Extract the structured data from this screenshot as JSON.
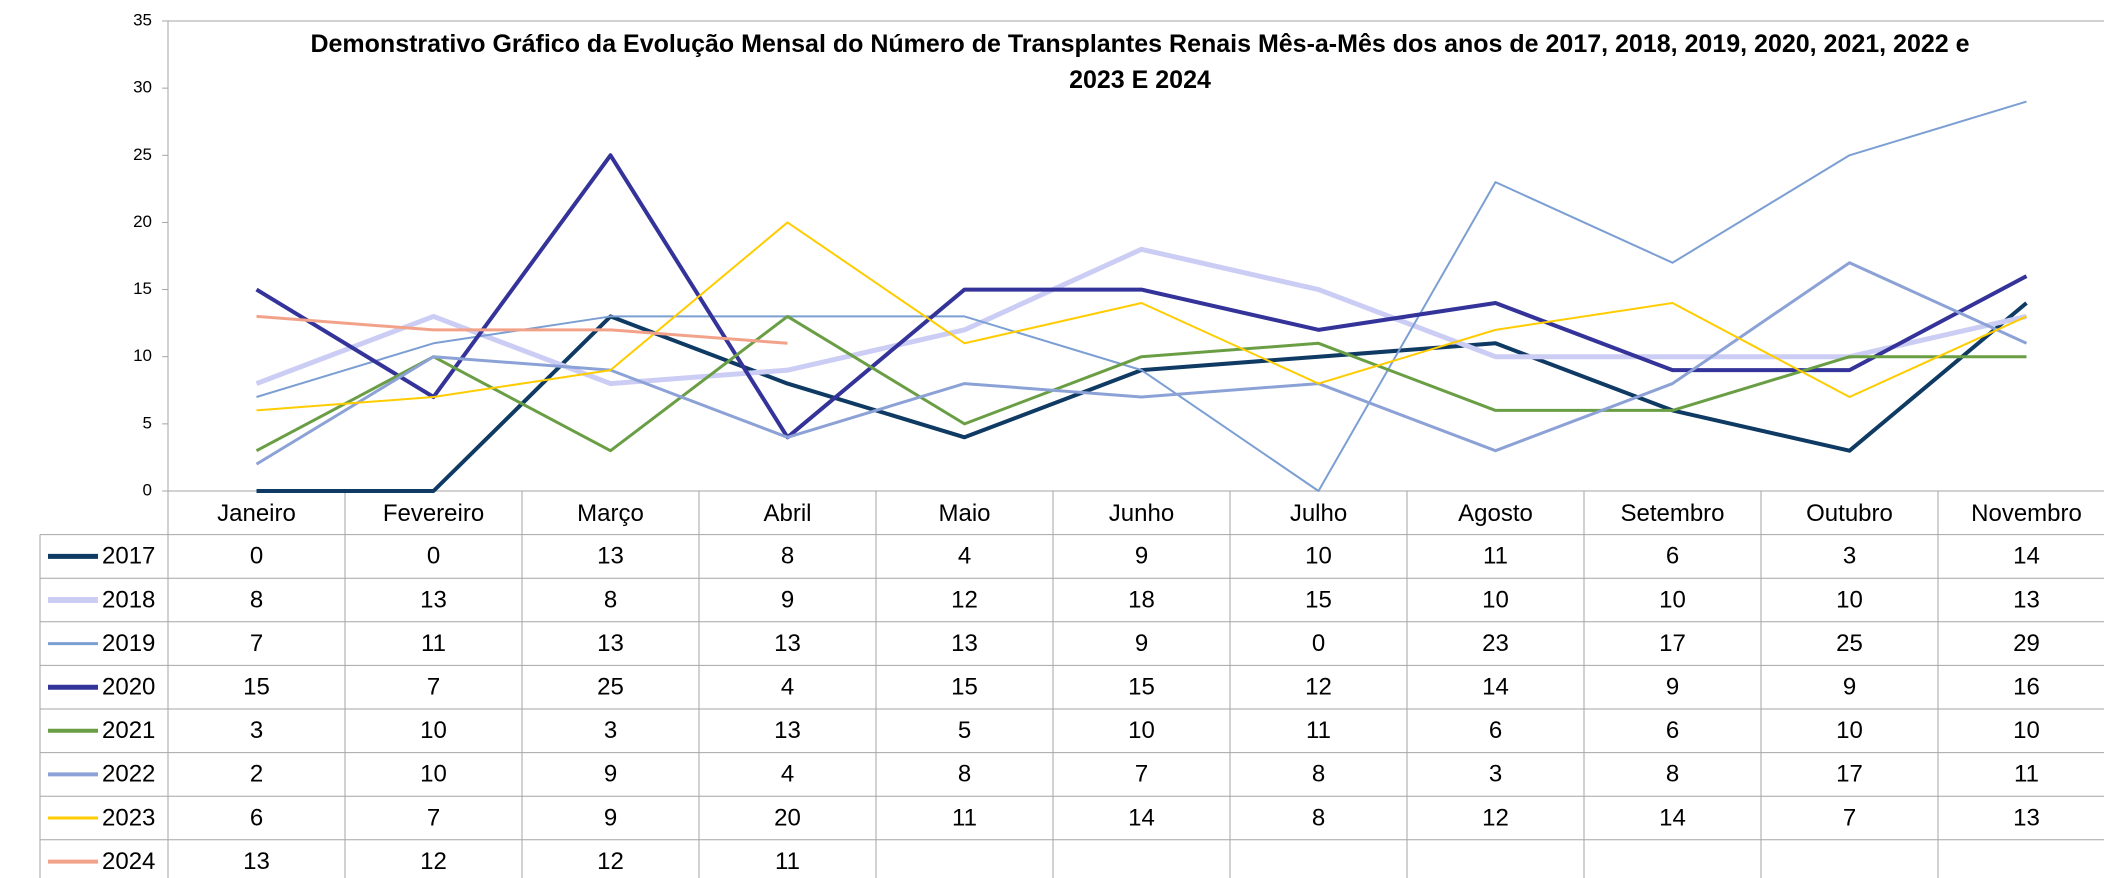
{
  "chart_data": {
    "type": "line",
    "title": "Demonstrativo Gráfico da Evolução Mensal do Número de Transplantes Renais Mês-a-Mês dos anos de  2017, 2018, 2019, 2020, 2021, 2022 e 2023 E 2024",
    "categories": [
      "Janeiro",
      "Fevereiro",
      "Março",
      "Abril",
      "Maio",
      "Junho",
      "Julho",
      "Agosto",
      "Setembro",
      "Outubro",
      "Novembro"
    ],
    "ylim": [
      0,
      35
    ],
    "yticks": [
      0,
      5,
      10,
      15,
      20,
      25,
      30,
      35
    ],
    "series": [
      {
        "name": "2017",
        "color": "#0e3a63",
        "width": 4,
        "values": [
          0,
          0,
          13,
          8,
          4,
          9,
          10,
          11,
          6,
          3,
          14
        ]
      },
      {
        "name": "2018",
        "color": "#cccdf4",
        "width": 5,
        "values": [
          8,
          13,
          8,
          9,
          12,
          18,
          15,
          10,
          10,
          10,
          13
        ]
      },
      {
        "name": "2019",
        "color": "#7c9fd3",
        "width": 2,
        "values": [
          7,
          11,
          13,
          13,
          13,
          9,
          0,
          23,
          17,
          25,
          29
        ]
      },
      {
        "name": "2020",
        "color": "#333399",
        "width": 4,
        "values": [
          15,
          7,
          25,
          4,
          15,
          15,
          12,
          14,
          9,
          9,
          16
        ]
      },
      {
        "name": "2021",
        "color": "#6a9e44",
        "width": 3,
        "values": [
          3,
          10,
          3,
          13,
          5,
          10,
          11,
          6,
          6,
          10,
          10
        ]
      },
      {
        "name": "2022",
        "color": "#8ca2d6",
        "width": 3,
        "values": [
          2,
          10,
          9,
          4,
          8,
          7,
          8,
          3,
          8,
          17,
          11
        ]
      },
      {
        "name": "2023",
        "color": "#ffcc00",
        "width": 2,
        "values": [
          6,
          7,
          9,
          20,
          11,
          14,
          8,
          12,
          14,
          7,
          13
        ]
      },
      {
        "name": "2024",
        "color": "#f3a28a",
        "width": 3,
        "values": [
          13,
          12,
          12,
          11,
          null,
          null,
          null,
          null,
          null,
          null,
          null
        ]
      }
    ]
  }
}
